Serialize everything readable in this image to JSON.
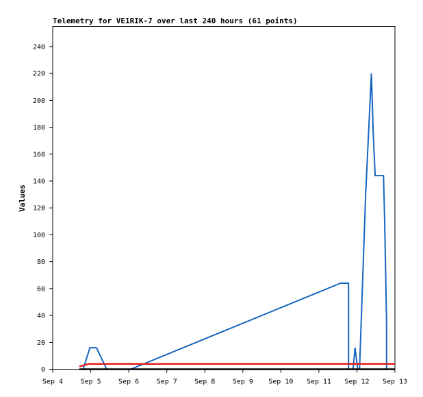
{
  "chart_data": {
    "type": "line",
    "title": "Telemetry for VE1RIK-7 over last 240 hours (61 points)",
    "xlabel": "",
    "ylabel": "Values",
    "xlim": [
      4.0,
      13.0
    ],
    "ylim": [
      0,
      255
    ],
    "x_ticks": [
      4,
      5,
      6,
      7,
      8,
      9,
      10,
      11,
      12,
      13
    ],
    "x_tick_labels": [
      "Sep 4",
      "Sep 5",
      "Sep 6",
      "Sep 7",
      "Sep 8",
      "Sep 9",
      "Sep 10",
      "Sep 11",
      "Sep 12",
      "Sep 13"
    ],
    "y_ticks": [
      0,
      20,
      40,
      60,
      80,
      100,
      120,
      140,
      160,
      180,
      200,
      220,
      240
    ],
    "grid": false,
    "series": [
      {
        "color": "#1565c0",
        "x": [
          4.8,
          4.98,
          5.15,
          5.42,
          5.42,
          6.05,
          11.57,
          11.78,
          11.78,
          11.9,
          11.95,
          12.02,
          12.07,
          12.23,
          12.38,
          12.43,
          12.48,
          12.53,
          12.7,
          12.73,
          12.78,
          12.78
        ],
        "y": [
          0,
          16,
          16,
          0,
          0,
          0,
          64,
          64,
          0,
          0,
          16,
          0,
          0,
          130,
          220,
          175,
          144,
          144,
          144,
          110,
          35,
          0
        ]
      },
      {
        "color": "#e02020",
        "x": [
          4.7,
          4.95,
          13.0
        ],
        "y": [
          2,
          4,
          4
        ]
      },
      {
        "color": "#000000",
        "x": [
          4.7,
          13.0
        ],
        "y": [
          0,
          0
        ]
      }
    ]
  }
}
